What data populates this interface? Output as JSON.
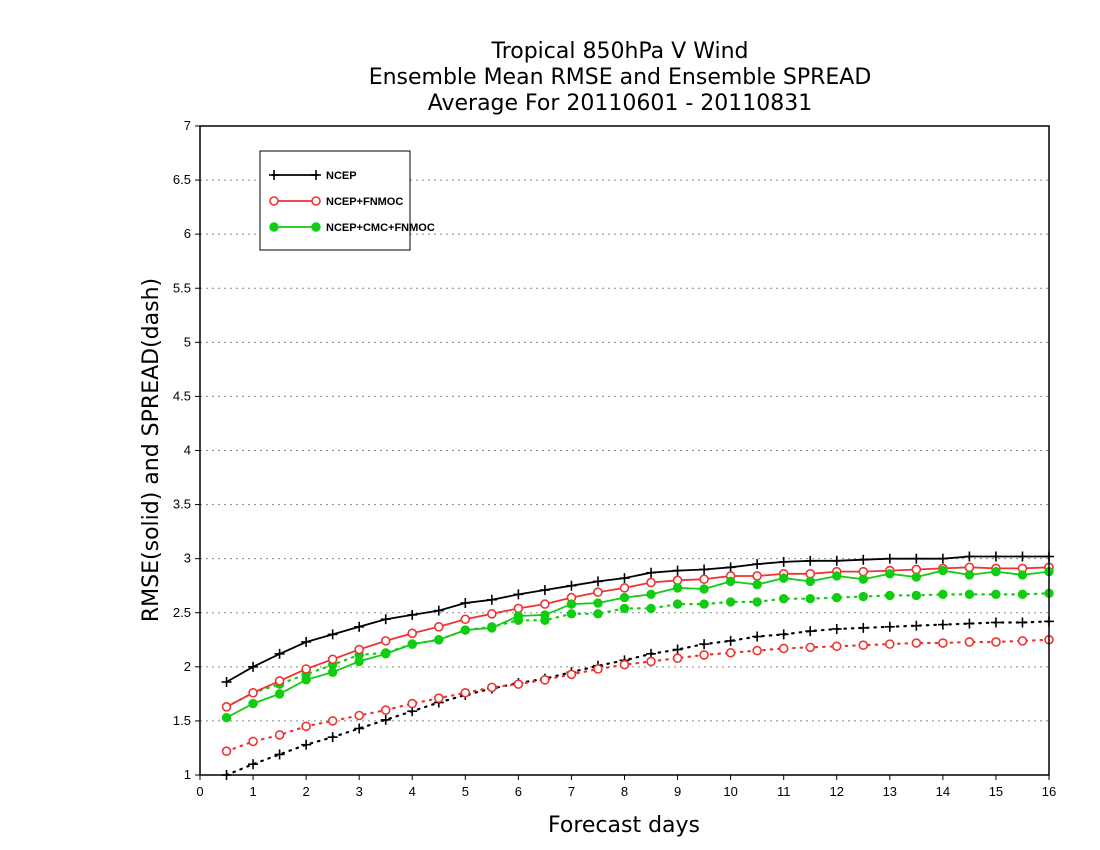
{
  "chart_data": {
    "type": "line",
    "title": [
      "Tropical 850hPa V Wind",
      "Ensemble Mean RMSE and Ensemble SPREAD",
      "Average For 20110601 - 20110831"
    ],
    "xlabel": "Forecast days",
    "ylabel": "RMSE(solid) and SPREAD(dash)",
    "xlim": [
      0,
      16
    ],
    "ylim": [
      1,
      7
    ],
    "xticks": [
      "0",
      "1",
      "2",
      "3",
      "4",
      "5",
      "6",
      "7",
      "8",
      "9",
      "10",
      "11",
      "12",
      "13",
      "14",
      "15",
      "16"
    ],
    "yticks": [
      "1",
      "1.5",
      "2",
      "2.5",
      "3",
      "3.5",
      "4",
      "4.5",
      "5",
      "5.5",
      "6",
      "6.5",
      "7"
    ],
    "grid": "horizontal dotted",
    "legend_position": "top-left",
    "x": [
      0.5,
      1,
      1.5,
      2,
      2.5,
      3,
      3.5,
      4,
      4.5,
      5,
      5.5,
      6,
      6.5,
      7,
      7.5,
      8,
      8.5,
      9,
      9.5,
      10,
      10.5,
      11,
      11.5,
      12,
      12.5,
      13,
      13.5,
      14,
      14.5,
      15,
      15.5,
      16
    ],
    "series": [
      {
        "name": "NCEP",
        "color": "#000000",
        "marker": "plus",
        "style": "solid",
        "values": [
          1.86,
          2.0,
          2.12,
          2.23,
          2.3,
          2.37,
          2.44,
          2.48,
          2.52,
          2.59,
          2.62,
          2.67,
          2.71,
          2.75,
          2.79,
          2.82,
          2.87,
          2.89,
          2.9,
          2.92,
          2.95,
          2.97,
          2.98,
          2.98,
          2.99,
          3.0,
          3.0,
          3.0,
          3.02,
          3.02,
          3.02,
          3.02
        ]
      },
      {
        "name": "NCEP+FNMOC",
        "color": "#ee3333",
        "marker": "circle-open",
        "style": "solid",
        "values": [
          1.63,
          1.76,
          1.87,
          1.98,
          2.07,
          2.16,
          2.24,
          2.31,
          2.37,
          2.44,
          2.49,
          2.54,
          2.58,
          2.64,
          2.69,
          2.73,
          2.78,
          2.8,
          2.81,
          2.84,
          2.84,
          2.86,
          2.86,
          2.88,
          2.88,
          2.89,
          2.9,
          2.91,
          2.92,
          2.91,
          2.91,
          2.92
        ]
      },
      {
        "name": "NCEP+CMC+FNMOC",
        "color": "#11cc11",
        "marker": "circle-filled",
        "style": "solid",
        "values": [
          1.53,
          1.66,
          1.75,
          1.88,
          1.95,
          2.05,
          2.12,
          2.21,
          2.25,
          2.34,
          2.36,
          2.47,
          2.48,
          2.58,
          2.59,
          2.64,
          2.67,
          2.73,
          2.72,
          2.79,
          2.76,
          2.82,
          2.79,
          2.84,
          2.81,
          2.86,
          2.83,
          2.89,
          2.85,
          2.88,
          2.85,
          2.88
        ]
      },
      {
        "name": "NCEP spread",
        "color": "#000000",
        "marker": "plus",
        "style": "dotted",
        "values": [
          1.0,
          1.1,
          1.19,
          1.28,
          1.35,
          1.43,
          1.51,
          1.59,
          1.67,
          1.74,
          1.8,
          1.85,
          1.89,
          1.95,
          2.01,
          2.06,
          2.12,
          2.16,
          2.21,
          2.24,
          2.28,
          2.3,
          2.33,
          2.35,
          2.36,
          2.37,
          2.38,
          2.39,
          2.4,
          2.41,
          2.41,
          2.42
        ]
      },
      {
        "name": "NCEP+FNMOC spread",
        "color": "#ee3333",
        "marker": "circle-open",
        "style": "dotted",
        "values": [
          1.22,
          1.31,
          1.37,
          1.45,
          1.5,
          1.55,
          1.6,
          1.66,
          1.71,
          1.76,
          1.81,
          1.84,
          1.88,
          1.93,
          1.98,
          2.02,
          2.05,
          2.08,
          2.11,
          2.13,
          2.15,
          2.17,
          2.18,
          2.19,
          2.2,
          2.21,
          2.22,
          2.22,
          2.23,
          2.23,
          2.24,
          2.25
        ]
      },
      {
        "name": "NCEP+CMC+FNMOC spread",
        "color": "#11cc11",
        "marker": "circle-filled",
        "style": "dotted",
        "values": [
          1.63,
          1.76,
          1.84,
          1.93,
          2.02,
          2.11,
          2.13,
          2.21,
          2.25,
          2.34,
          2.37,
          2.43,
          2.43,
          2.49,
          2.49,
          2.54,
          2.54,
          2.58,
          2.58,
          2.6,
          2.6,
          2.63,
          2.63,
          2.64,
          2.65,
          2.66,
          2.66,
          2.67,
          2.67,
          2.67,
          2.67,
          2.68
        ]
      }
    ],
    "legend": [
      "NCEP",
      "NCEP+FNMOC",
      "NCEP+CMC+FNMOC"
    ]
  }
}
